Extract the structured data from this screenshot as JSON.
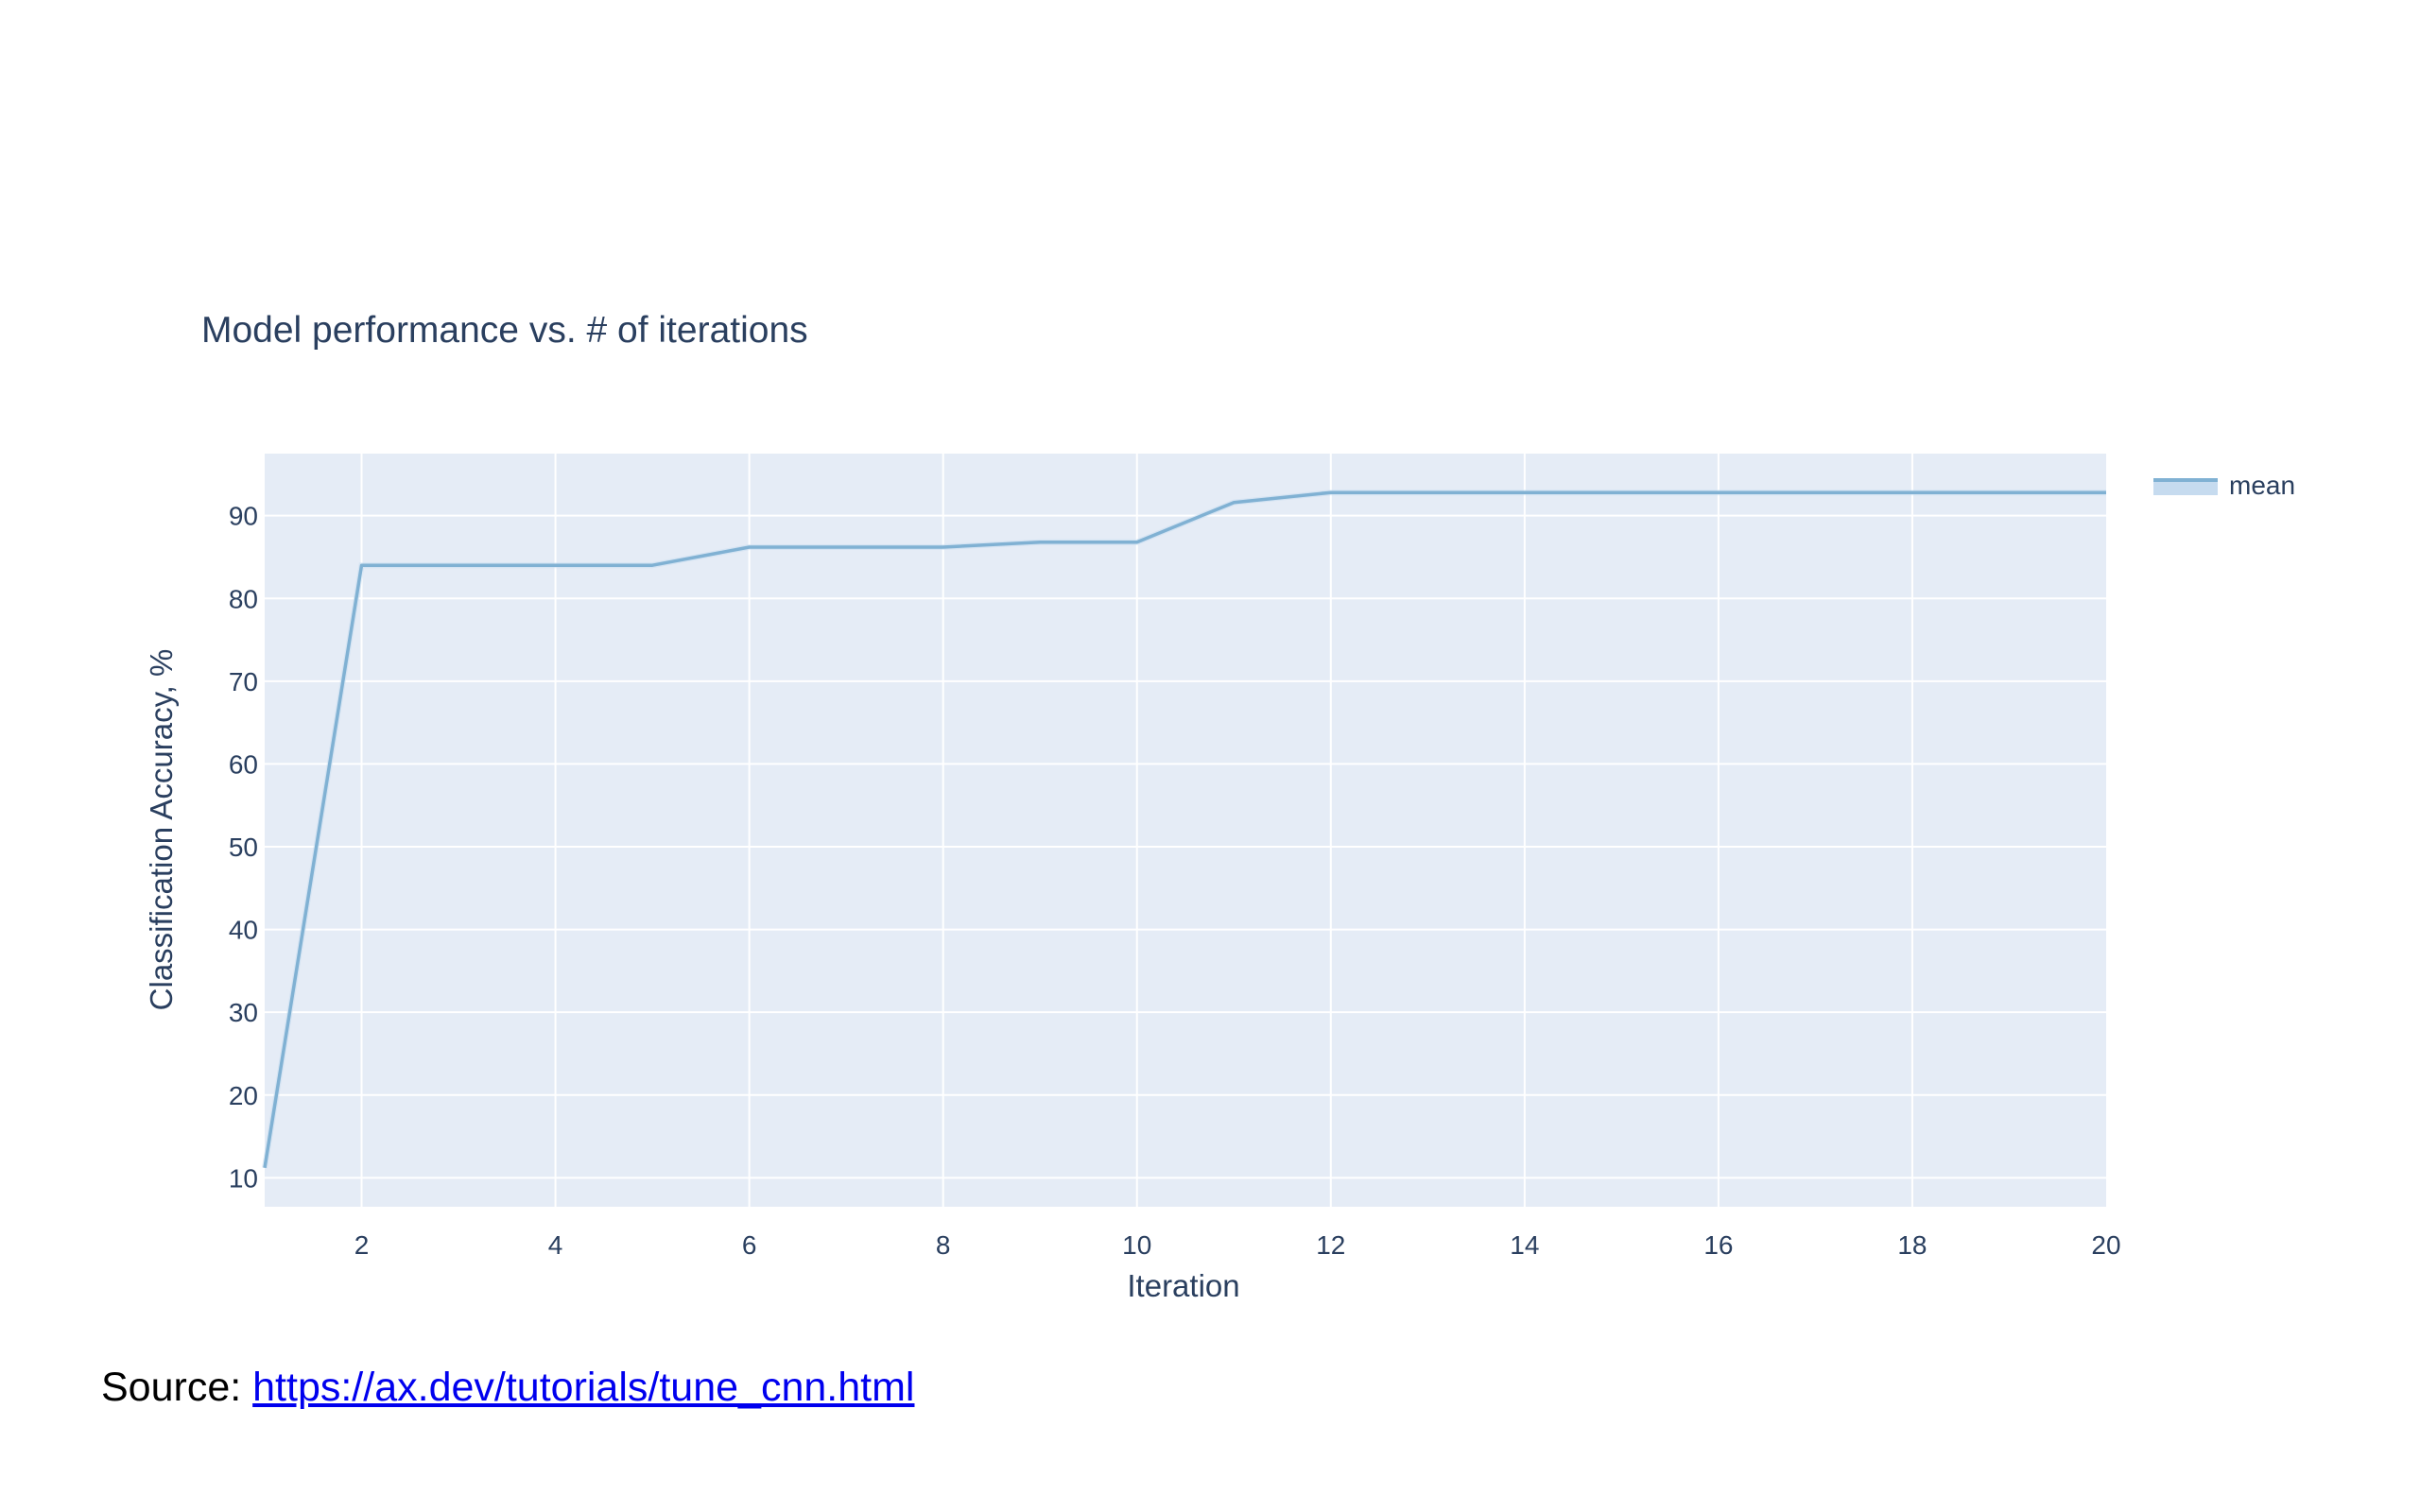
{
  "colors": {
    "plot_background": "#e5ecf6",
    "grid": "#ffffff",
    "line": "#80b1d3",
    "band": "#c6dbef",
    "text": "#2a3f5f",
    "link": "#0000ee"
  },
  "chart_data": {
    "type": "line",
    "title": "Model performance vs. # of iterations",
    "xlabel": "Iteration",
    "ylabel": "Classification Accuracy, %",
    "xlim": [
      1,
      20
    ],
    "ylim": [
      6.5,
      97.5
    ],
    "xticks": [
      2,
      4,
      6,
      8,
      10,
      12,
      14,
      16,
      18,
      20
    ],
    "yticks": [
      10,
      20,
      30,
      40,
      50,
      60,
      70,
      80,
      90
    ],
    "grid": true,
    "legend_position": "top-right",
    "series": [
      {
        "name": "mean",
        "x": [
          1,
          2,
          3,
          4,
          5,
          6,
          7,
          8,
          9,
          10,
          11,
          12,
          13,
          14,
          15,
          16,
          17,
          18,
          19,
          20
        ],
        "y": [
          11.2,
          84.0,
          84.0,
          84.0,
          84.0,
          86.2,
          86.2,
          86.2,
          86.8,
          86.8,
          91.6,
          92.8,
          92.8,
          92.8,
          92.8,
          92.8,
          92.8,
          92.8,
          92.8,
          92.8
        ]
      }
    ]
  },
  "source": {
    "prefix": "Source: ",
    "link_text": "https://ax.dev/tutorials/tune_cnn.html"
  }
}
